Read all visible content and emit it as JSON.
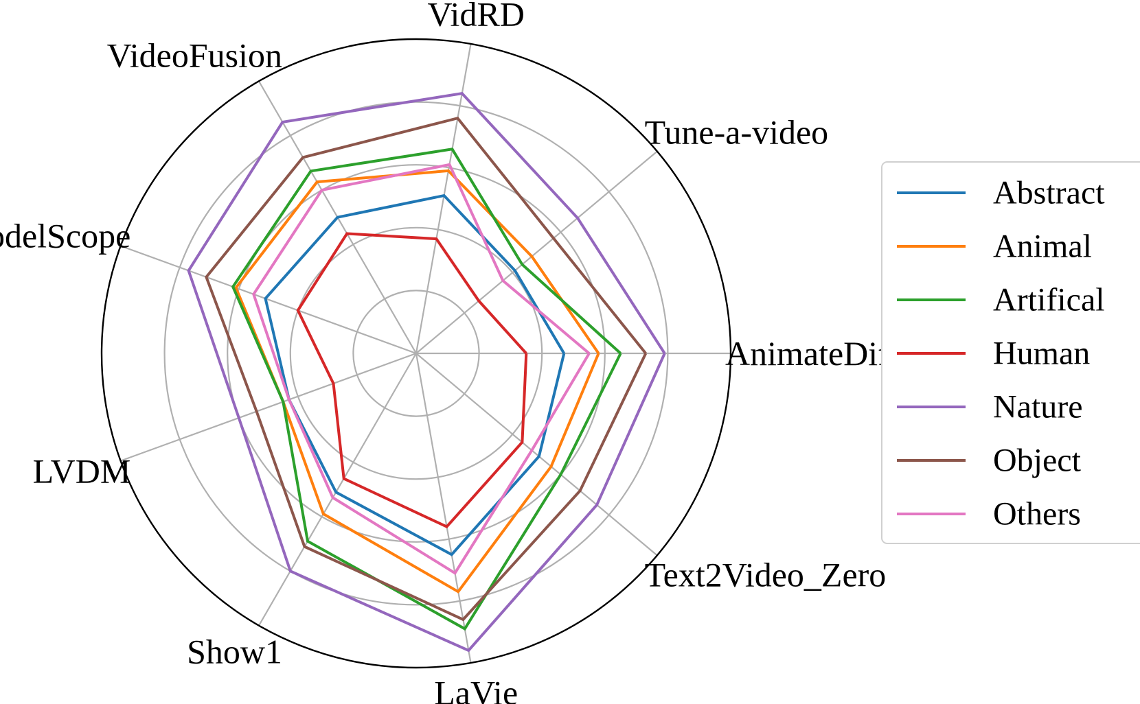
{
  "chart_data": {
    "type": "radar",
    "axes": [
      "AnimateDiff",
      "VidRD",
      "VideoFusion",
      "ModelScope",
      "LVDM",
      "Show1",
      "LaVie",
      "Text2Video_Zero",
      "Tune-a-video"
    ],
    "axes_display_order_counterclockwise_from_east": [
      "AnimateDiff",
      "Tune-a-video",
      "VidRD",
      "VideoFusion",
      "ModelScope",
      "LVDM",
      "Show1",
      "LaVie",
      "Text2Video_Zero"
    ],
    "rlim": [
      0,
      1
    ],
    "rgrid": [
      0.2,
      0.4,
      0.6,
      0.8
    ],
    "grid": true,
    "legend_position": "right",
    "series": [
      {
        "name": "Abstract",
        "color": "#1f77b4",
        "values": {
          "AnimateDiff": 0.47,
          "Tune-a-video": 0.41,
          "VidRD": 0.51,
          "VideoFusion": 0.5,
          "ModelScope": 0.51,
          "LVDM": 0.43,
          "Show1": 0.51,
          "LaVie": 0.65,
          "Text2Video_Zero": 0.51
        }
      },
      {
        "name": "Animal",
        "color": "#ff7f0e",
        "values": {
          "AnimateDiff": 0.58,
          "Tune-a-video": 0.48,
          "VidRD": 0.59,
          "VideoFusion": 0.63,
          "ModelScope": 0.61,
          "LVDM": 0.45,
          "Show1": 0.59,
          "LaVie": 0.77,
          "Text2Video_Zero": 0.56
        }
      },
      {
        "name": "Artifical",
        "color": "#2ca02c",
        "values": {
          "AnimateDiff": 0.65,
          "Tune-a-video": 0.44,
          "VidRD": 0.66,
          "VideoFusion": 0.67,
          "ModelScope": 0.62,
          "LVDM": 0.45,
          "Show1": 0.69,
          "LaVie": 0.89,
          "Text2Video_Zero": 0.6
        }
      },
      {
        "name": "Human",
        "color": "#d62728",
        "values": {
          "AnimateDiff": 0.35,
          "Tune-a-video": 0.26,
          "VidRD": 0.37,
          "VideoFusion": 0.44,
          "ModelScope": 0.4,
          "LVDM": 0.28,
          "Show1": 0.46,
          "LaVie": 0.56,
          "Text2Video_Zero": 0.44
        }
      },
      {
        "name": "Nature",
        "color": "#9467bd",
        "values": {
          "AnimateDiff": 0.79,
          "Tune-a-video": 0.67,
          "VidRD": 0.84,
          "VideoFusion": 0.85,
          "ModelScope": 0.77,
          "LVDM": 0.6,
          "Show1": 0.8,
          "LaVie": 0.96,
          "Text2Video_Zero": 0.75
        }
      },
      {
        "name": "Object",
        "color": "#8c564b",
        "values": {
          "AnimateDiff": 0.73,
          "Tune-a-video": 0.57,
          "VidRD": 0.76,
          "VideoFusion": 0.72,
          "ModelScope": 0.71,
          "LVDM": 0.54,
          "Show1": 0.71,
          "LaVie": 0.86,
          "Text2Video_Zero": 0.68
        }
      },
      {
        "name": "Others",
        "color": "#e377c2",
        "values": {
          "AnimateDiff": 0.55,
          "Tune-a-video": 0.36,
          "VidRD": 0.61,
          "VideoFusion": 0.6,
          "ModelScope": 0.55,
          "LVDM": 0.43,
          "Show1": 0.53,
          "LaVie": 0.71,
          "Text2Video_Zero": 0.48
        }
      }
    ]
  }
}
